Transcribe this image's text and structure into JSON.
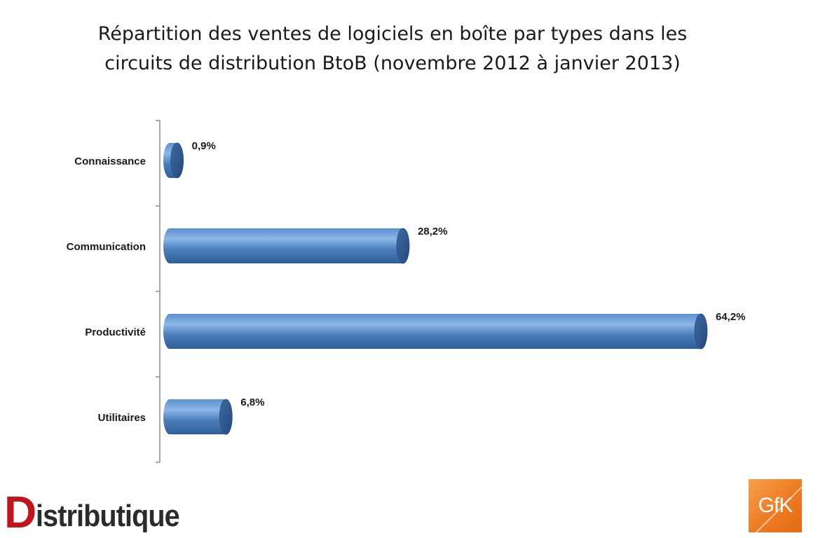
{
  "title": {
    "line1": "Répartition des ventes de logiciels en boîte par types dans les",
    "line2": "circuits de distribution BtoB (novembre 2012 à janvier 2013)"
  },
  "logos": {
    "left_first": "D",
    "left_rest": "istributique",
    "right": "GfK"
  },
  "colors": {
    "bar": "#4a7ebb",
    "bar_dark": "#2d5689",
    "bar_light": "#7aa7dc",
    "axis": "#8c8c8c"
  },
  "chart_data": {
    "type": "bar",
    "orientation": "horizontal",
    "shape": "cylinder",
    "title": "Répartition des ventes de logiciels en boîte par types dans les circuits de distribution BtoB (novembre 2012 à janvier 2013)",
    "categories": [
      "Connaissance",
      "Communication",
      "Productivité",
      "Utilitaires"
    ],
    "values": [
      0.9,
      28.2,
      64.2,
      6.8
    ],
    "data_labels": [
      "0,9%",
      "28,2%",
      "64,2%",
      "6,8%"
    ],
    "xlim": [
      0,
      64.2
    ],
    "grid": false,
    "legend": "none"
  }
}
